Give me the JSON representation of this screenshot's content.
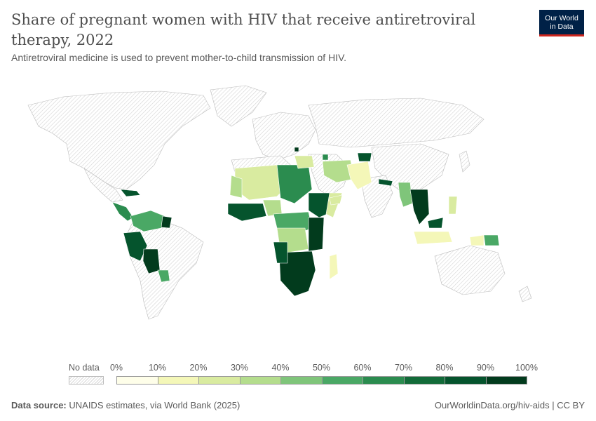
{
  "title": "Share of pregnant women with HIV that receive antiretroviral therapy, 2022",
  "subtitle": "Antiretroviral medicine is used to prevent mother-to-child transmission of HIV.",
  "logo": {
    "line1": "Our World",
    "line2": "in Data"
  },
  "legend": {
    "no_data_label": "No data",
    "ticks": [
      "0%",
      "10%",
      "20%",
      "30%",
      "40%",
      "50%",
      "60%",
      "70%",
      "80%",
      "90%",
      "100%"
    ],
    "colors": [
      "#fefee9",
      "#f4f7b8",
      "#d9eba0",
      "#b4dd8d",
      "#7fc57a",
      "#4aa865",
      "#2b8c4f",
      "#126b39",
      "#05542d",
      "#023b1d"
    ]
  },
  "footer": {
    "source_label": "Data source:",
    "source_text": "UNAIDS estimates, via World Bank (2025)",
    "url": "OurWorldinData.org/hiv-aids | CC BY"
  }
}
